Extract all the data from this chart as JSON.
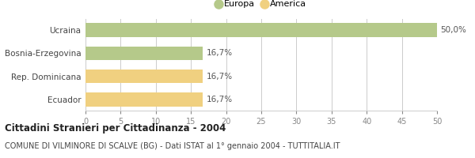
{
  "categories": [
    "Ecuador",
    "Rep. Dominicana",
    "Bosnia-Erzegovina",
    "Ucraina"
  ],
  "values": [
    16.7,
    16.7,
    16.7,
    50.0
  ],
  "colors": [
    "#f0d080",
    "#f0d080",
    "#b5c98a",
    "#b5c98a"
  ],
  "labels": [
    "16,7%",
    "16,7%",
    "16,7%",
    "50,0%"
  ],
  "legend": [
    {
      "label": "Europa",
      "color": "#b5c98a"
    },
    {
      "label": "America",
      "color": "#f0d080"
    }
  ],
  "xlim": [
    0,
    50
  ],
  "xticks": [
    0,
    5,
    10,
    15,
    20,
    25,
    30,
    35,
    40,
    45,
    50
  ],
  "title_bold": "Cittadini Stranieri per Cittadinanza - 2004",
  "subtitle": "COMUNE DI VILMINORE DI SCALVE (BG) - Dati ISTAT al 1° gennaio 2004 - TUTTITALIA.IT",
  "bg_color": "#ffffff",
  "grid_color": "#cccccc",
  "bar_height": 0.6,
  "title_fontsize": 8.5,
  "subtitle_fontsize": 7,
  "label_fontsize": 7.5,
  "tick_fontsize": 7,
  "legend_fontsize": 8,
  "ytick_fontsize": 7.5
}
